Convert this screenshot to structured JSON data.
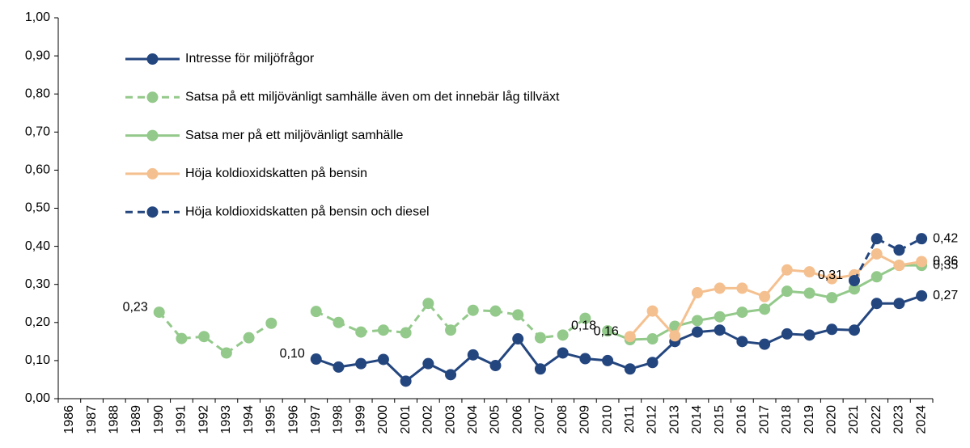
{
  "chart_data": {
    "type": "line",
    "categories": [
      "1986",
      "1987",
      "1988",
      "1989",
      "1990",
      "1991",
      "1992",
      "1993",
      "1994",
      "1995",
      "1996",
      "1997",
      "1998",
      "1999",
      "2000",
      "2001",
      "2002",
      "2003",
      "2004",
      "2005",
      "2006",
      "2007",
      "2008",
      "2009",
      "2010",
      "2011",
      "2012",
      "2013",
      "2014",
      "2015",
      "2016",
      "2017",
      "2018",
      "2019",
      "2020",
      "2021",
      "2022",
      "2023",
      "2024"
    ],
    "ylim": [
      0,
      1
    ],
    "yticks": [
      {
        "value": 0,
        "label": "0,00"
      },
      {
        "value": 0.1,
        "label": "0,10"
      },
      {
        "value": 0.2,
        "label": "0,20"
      },
      {
        "value": 0.3,
        "label": "0,30"
      },
      {
        "value": 0.4,
        "label": "0,40"
      },
      {
        "value": 0.5,
        "label": "0,50"
      },
      {
        "value": 0.6,
        "label": "0,60"
      },
      {
        "value": 0.7,
        "label": "0,70"
      },
      {
        "value": 0.8,
        "label": "0,80"
      },
      {
        "value": 0.9,
        "label": "0,90"
      },
      {
        "value": 1,
        "label": "1,00"
      }
    ],
    "legend": "upper left",
    "series": [
      {
        "name": "Intresse för miljöfrågor",
        "color": "#24467f",
        "dashed": false,
        "values": [
          null,
          null,
          null,
          null,
          null,
          null,
          null,
          null,
          null,
          null,
          null,
          0.104,
          0.083,
          0.092,
          0.103,
          0.046,
          0.092,
          0.063,
          0.115,
          0.087,
          0.157,
          0.078,
          0.12,
          0.105,
          0.1,
          0.078,
          0.095,
          0.15,
          0.175,
          0.18,
          0.15,
          0.143,
          0.17,
          0.167,
          0.182,
          0.18,
          0.25,
          0.25,
          0.27
        ],
        "value_labels": [
          null,
          null,
          null,
          null,
          null,
          null,
          null,
          null,
          null,
          null,
          null,
          "0,10",
          null,
          null,
          null,
          null,
          null,
          null,
          null,
          null,
          null,
          null,
          null,
          null,
          null,
          null,
          null,
          null,
          null,
          null,
          null,
          null,
          null,
          null,
          null,
          null,
          null,
          null,
          "0,27"
        ]
      },
      {
        "name": "Satsa på ett miljövänligt samhälle även om det innebär låg tillväxt",
        "color": "#93c98a",
        "dashed": true,
        "values": [
          null,
          null,
          null,
          null,
          0.227,
          0.158,
          0.163,
          0.12,
          0.16,
          0.198,
          null,
          0.229,
          0.2,
          0.175,
          0.18,
          0.173,
          0.25,
          0.18,
          0.232,
          0.23,
          0.22,
          0.16,
          0.167,
          0.211,
          null,
          null,
          null,
          null,
          null,
          null,
          null,
          null,
          null,
          null,
          null,
          null,
          null,
          null,
          null
        ],
        "value_labels": [
          null,
          null,
          null,
          null,
          "0,23",
          null,
          null,
          null,
          null,
          null,
          null,
          null,
          null,
          null,
          null,
          null,
          null,
          null,
          null,
          null,
          null,
          null,
          null,
          null,
          null,
          null,
          null,
          null,
          null,
          null,
          null,
          null,
          null,
          null,
          null,
          null,
          null,
          null,
          null
        ]
      },
      {
        "name": "Satsa mer på ett miljövänligt samhälle",
        "color": "#93c98a",
        "dashed": false,
        "values": [
          null,
          null,
          null,
          null,
          null,
          null,
          null,
          null,
          null,
          null,
          null,
          null,
          null,
          null,
          null,
          null,
          null,
          null,
          null,
          null,
          null,
          null,
          null,
          null,
          0.178,
          0.155,
          0.157,
          0.19,
          0.205,
          0.215,
          0.227,
          0.235,
          0.282,
          0.277,
          0.265,
          0.288,
          0.32,
          0.35,
          0.35
        ],
        "value_labels": [
          null,
          null,
          null,
          null,
          null,
          null,
          null,
          null,
          null,
          null,
          null,
          null,
          null,
          null,
          null,
          null,
          null,
          null,
          null,
          null,
          null,
          null,
          null,
          null,
          "0,18",
          null,
          null,
          null,
          null,
          null,
          null,
          null,
          null,
          null,
          null,
          null,
          null,
          null,
          "0,35"
        ]
      },
      {
        "name": "Höja koldioxidskatten på bensin",
        "color": "#f5c08f",
        "dashed": false,
        "values": [
          null,
          null,
          null,
          null,
          null,
          null,
          null,
          null,
          null,
          null,
          null,
          null,
          null,
          null,
          null,
          null,
          null,
          null,
          null,
          null,
          null,
          null,
          null,
          null,
          null,
          0.163,
          0.23,
          0.165,
          0.278,
          0.29,
          0.29,
          0.268,
          0.338,
          0.333,
          0.315,
          0.325,
          0.38,
          0.35,
          0.36
        ],
        "value_labels": [
          null,
          null,
          null,
          null,
          null,
          null,
          null,
          null,
          null,
          null,
          null,
          null,
          null,
          null,
          null,
          null,
          null,
          null,
          null,
          null,
          null,
          null,
          null,
          null,
          null,
          "0,16",
          null,
          null,
          null,
          null,
          null,
          null,
          null,
          null,
          null,
          null,
          null,
          null,
          "0,36"
        ]
      },
      {
        "name": "Höja koldioxidskatten på bensin och diesel",
        "color": "#24467f",
        "dashed": true,
        "values": [
          null,
          null,
          null,
          null,
          null,
          null,
          null,
          null,
          null,
          null,
          null,
          null,
          null,
          null,
          null,
          null,
          null,
          null,
          null,
          null,
          null,
          null,
          null,
          null,
          null,
          null,
          null,
          null,
          null,
          null,
          null,
          null,
          null,
          null,
          null,
          0.31,
          0.42,
          0.39,
          0.42
        ],
        "value_labels": [
          null,
          null,
          null,
          null,
          null,
          null,
          null,
          null,
          null,
          null,
          null,
          null,
          null,
          null,
          null,
          null,
          null,
          null,
          null,
          null,
          null,
          null,
          null,
          null,
          null,
          null,
          null,
          null,
          null,
          null,
          null,
          null,
          null,
          null,
          null,
          "0,31",
          null,
          null,
          "0,42"
        ]
      }
    ]
  }
}
